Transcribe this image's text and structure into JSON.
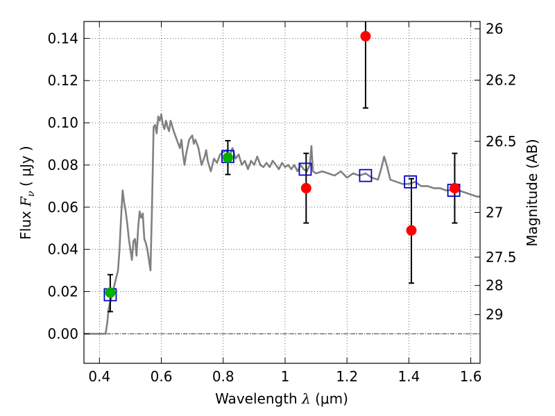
{
  "chart_data": {
    "type": "scatter",
    "xlabel": {
      "prefix": "Wavelength ",
      "symbol": "λ",
      "unit": " (μm)"
    },
    "ylabel": {
      "prefix": "Flux ",
      "symbol": "F",
      "subscript": "ν",
      "unit": " ( μJy )"
    },
    "y2label": "Magnitude (AB)",
    "xlim": [
      0.35,
      1.63
    ],
    "ylim": [
      -0.014,
      0.148
    ],
    "grid": true,
    "x_ticks": [
      {
        "value": 0.4,
        "label": "0.4"
      },
      {
        "value": 0.6,
        "label": "0.6"
      },
      {
        "value": 0.8,
        "label": "0.8"
      },
      {
        "value": 1.0,
        "label": "1"
      },
      {
        "value": 1.2,
        "label": "1.2"
      },
      {
        "value": 1.4,
        "label": "1.4"
      },
      {
        "value": 1.6,
        "label": "1.6"
      }
    ],
    "y_ticks": [
      {
        "value": 0.0,
        "label": "0.00"
      },
      {
        "value": 0.02,
        "label": "0.02"
      },
      {
        "value": 0.04,
        "label": "0.04"
      },
      {
        "value": 0.06,
        "label": "0.06"
      },
      {
        "value": 0.08,
        "label": "0.08"
      },
      {
        "value": 0.1,
        "label": "0.10"
      },
      {
        "value": 0.12,
        "label": "0.12"
      },
      {
        "value": 0.14,
        "label": "0.14"
      }
    ],
    "y2_ticks": [
      {
        "label": "26",
        "flux": 0.1445
      },
      {
        "label": "26.2",
        "flux": 0.1202
      },
      {
        "label": "26.5",
        "flux": 0.0912
      },
      {
        "label": "27",
        "flux": 0.0575
      },
      {
        "label": "27.5",
        "flux": 0.0363
      },
      {
        "label": "28",
        "flux": 0.0229
      },
      {
        "label": "29",
        "flux": 0.0091
      }
    ],
    "series": [
      {
        "type": "line",
        "color": "#808080",
        "x": [
          0.35,
          0.42,
          0.425,
          0.43,
          0.44,
          0.45,
          0.46,
          0.465,
          0.47,
          0.475,
          0.48,
          0.485,
          0.49,
          0.495,
          0.5,
          0.505,
          0.51,
          0.515,
          0.52,
          0.525,
          0.53,
          0.535,
          0.54,
          0.545,
          0.55,
          0.555,
          0.56,
          0.565,
          0.57,
          0.575,
          0.58,
          0.585,
          0.59,
          0.595,
          0.6,
          0.605,
          0.61,
          0.615,
          0.62,
          0.625,
          0.63,
          0.64,
          0.65,
          0.66,
          0.665,
          0.67,
          0.675,
          0.68,
          0.69,
          0.7,
          0.705,
          0.71,
          0.72,
          0.73,
          0.74,
          0.745,
          0.75,
          0.76,
          0.77,
          0.78,
          0.79,
          0.8,
          0.81,
          0.82,
          0.83,
          0.84,
          0.85,
          0.86,
          0.87,
          0.88,
          0.89,
          0.9,
          0.91,
          0.92,
          0.93,
          0.94,
          0.95,
          0.96,
          0.97,
          0.98,
          0.99,
          1.0,
          1.01,
          1.02,
          1.03,
          1.04,
          1.05,
          1.06,
          1.07,
          1.08,
          1.085,
          1.09,
          1.1,
          1.12,
          1.14,
          1.16,
          1.18,
          1.2,
          1.22,
          1.24,
          1.26,
          1.28,
          1.3,
          1.31,
          1.32,
          1.33,
          1.34,
          1.36,
          1.38,
          1.4,
          1.42,
          1.44,
          1.46,
          1.48,
          1.5,
          1.52,
          1.54,
          1.56,
          1.58,
          1.6,
          1.62,
          1.63
        ],
        "y": [
          0.0,
          0.0,
          0.005,
          0.012,
          0.018,
          0.024,
          0.03,
          0.04,
          0.055,
          0.068,
          0.062,
          0.058,
          0.052,
          0.045,
          0.04,
          0.035,
          0.044,
          0.045,
          0.037,
          0.05,
          0.058,
          0.055,
          0.057,
          0.045,
          0.043,
          0.04,
          0.035,
          0.03,
          0.06,
          0.098,
          0.099,
          0.095,
          0.103,
          0.101,
          0.104,
          0.099,
          0.097,
          0.101,
          0.098,
          0.096,
          0.101,
          0.096,
          0.092,
          0.088,
          0.092,
          0.085,
          0.08,
          0.085,
          0.092,
          0.094,
          0.09,
          0.092,
          0.088,
          0.08,
          0.084,
          0.087,
          0.082,
          0.077,
          0.083,
          0.081,
          0.085,
          0.086,
          0.087,
          0.084,
          0.088,
          0.083,
          0.085,
          0.08,
          0.082,
          0.078,
          0.082,
          0.08,
          0.084,
          0.08,
          0.079,
          0.081,
          0.079,
          0.082,
          0.08,
          0.078,
          0.081,
          0.079,
          0.08,
          0.078,
          0.08,
          0.077,
          0.08,
          0.078,
          0.077,
          0.08,
          0.089,
          0.077,
          0.076,
          0.077,
          0.076,
          0.075,
          0.077,
          0.074,
          0.076,
          0.075,
          0.076,
          0.074,
          0.073,
          0.078,
          0.084,
          0.079,
          0.073,
          0.072,
          0.071,
          0.071,
          0.072,
          0.07,
          0.07,
          0.069,
          0.069,
          0.068,
          0.068,
          0.068,
          0.067,
          0.066,
          0.065,
          0.065
        ]
      },
      {
        "type": "scatter",
        "marker": "square-open",
        "color": "#0000cc",
        "x": [
          0.435,
          0.815,
          1.065,
          1.26,
          1.405,
          1.545
        ],
        "y": [
          0.0185,
          0.084,
          0.078,
          0.075,
          0.072,
          0.068
        ]
      },
      {
        "type": "scatter",
        "marker": "circle",
        "color": "#00b000",
        "x": [
          0.435,
          0.815
        ],
        "y": [
          0.0195,
          0.0835
        ],
        "yerr_low": [
          0.0105,
          0.0755
        ],
        "yerr_high": [
          0.028,
          0.0915
        ]
      },
      {
        "type": "scatter",
        "marker": "circle",
        "color": "#ff0000",
        "x": [
          1.068,
          1.26,
          1.408,
          1.548
        ],
        "y": [
          0.069,
          0.141,
          0.049,
          0.069
        ],
        "yerr_low": [
          0.0525,
          0.107,
          0.024,
          0.0525
        ],
        "yerr_high": [
          0.0855,
          0.148,
          0.0735,
          0.0855
        ]
      }
    ]
  }
}
